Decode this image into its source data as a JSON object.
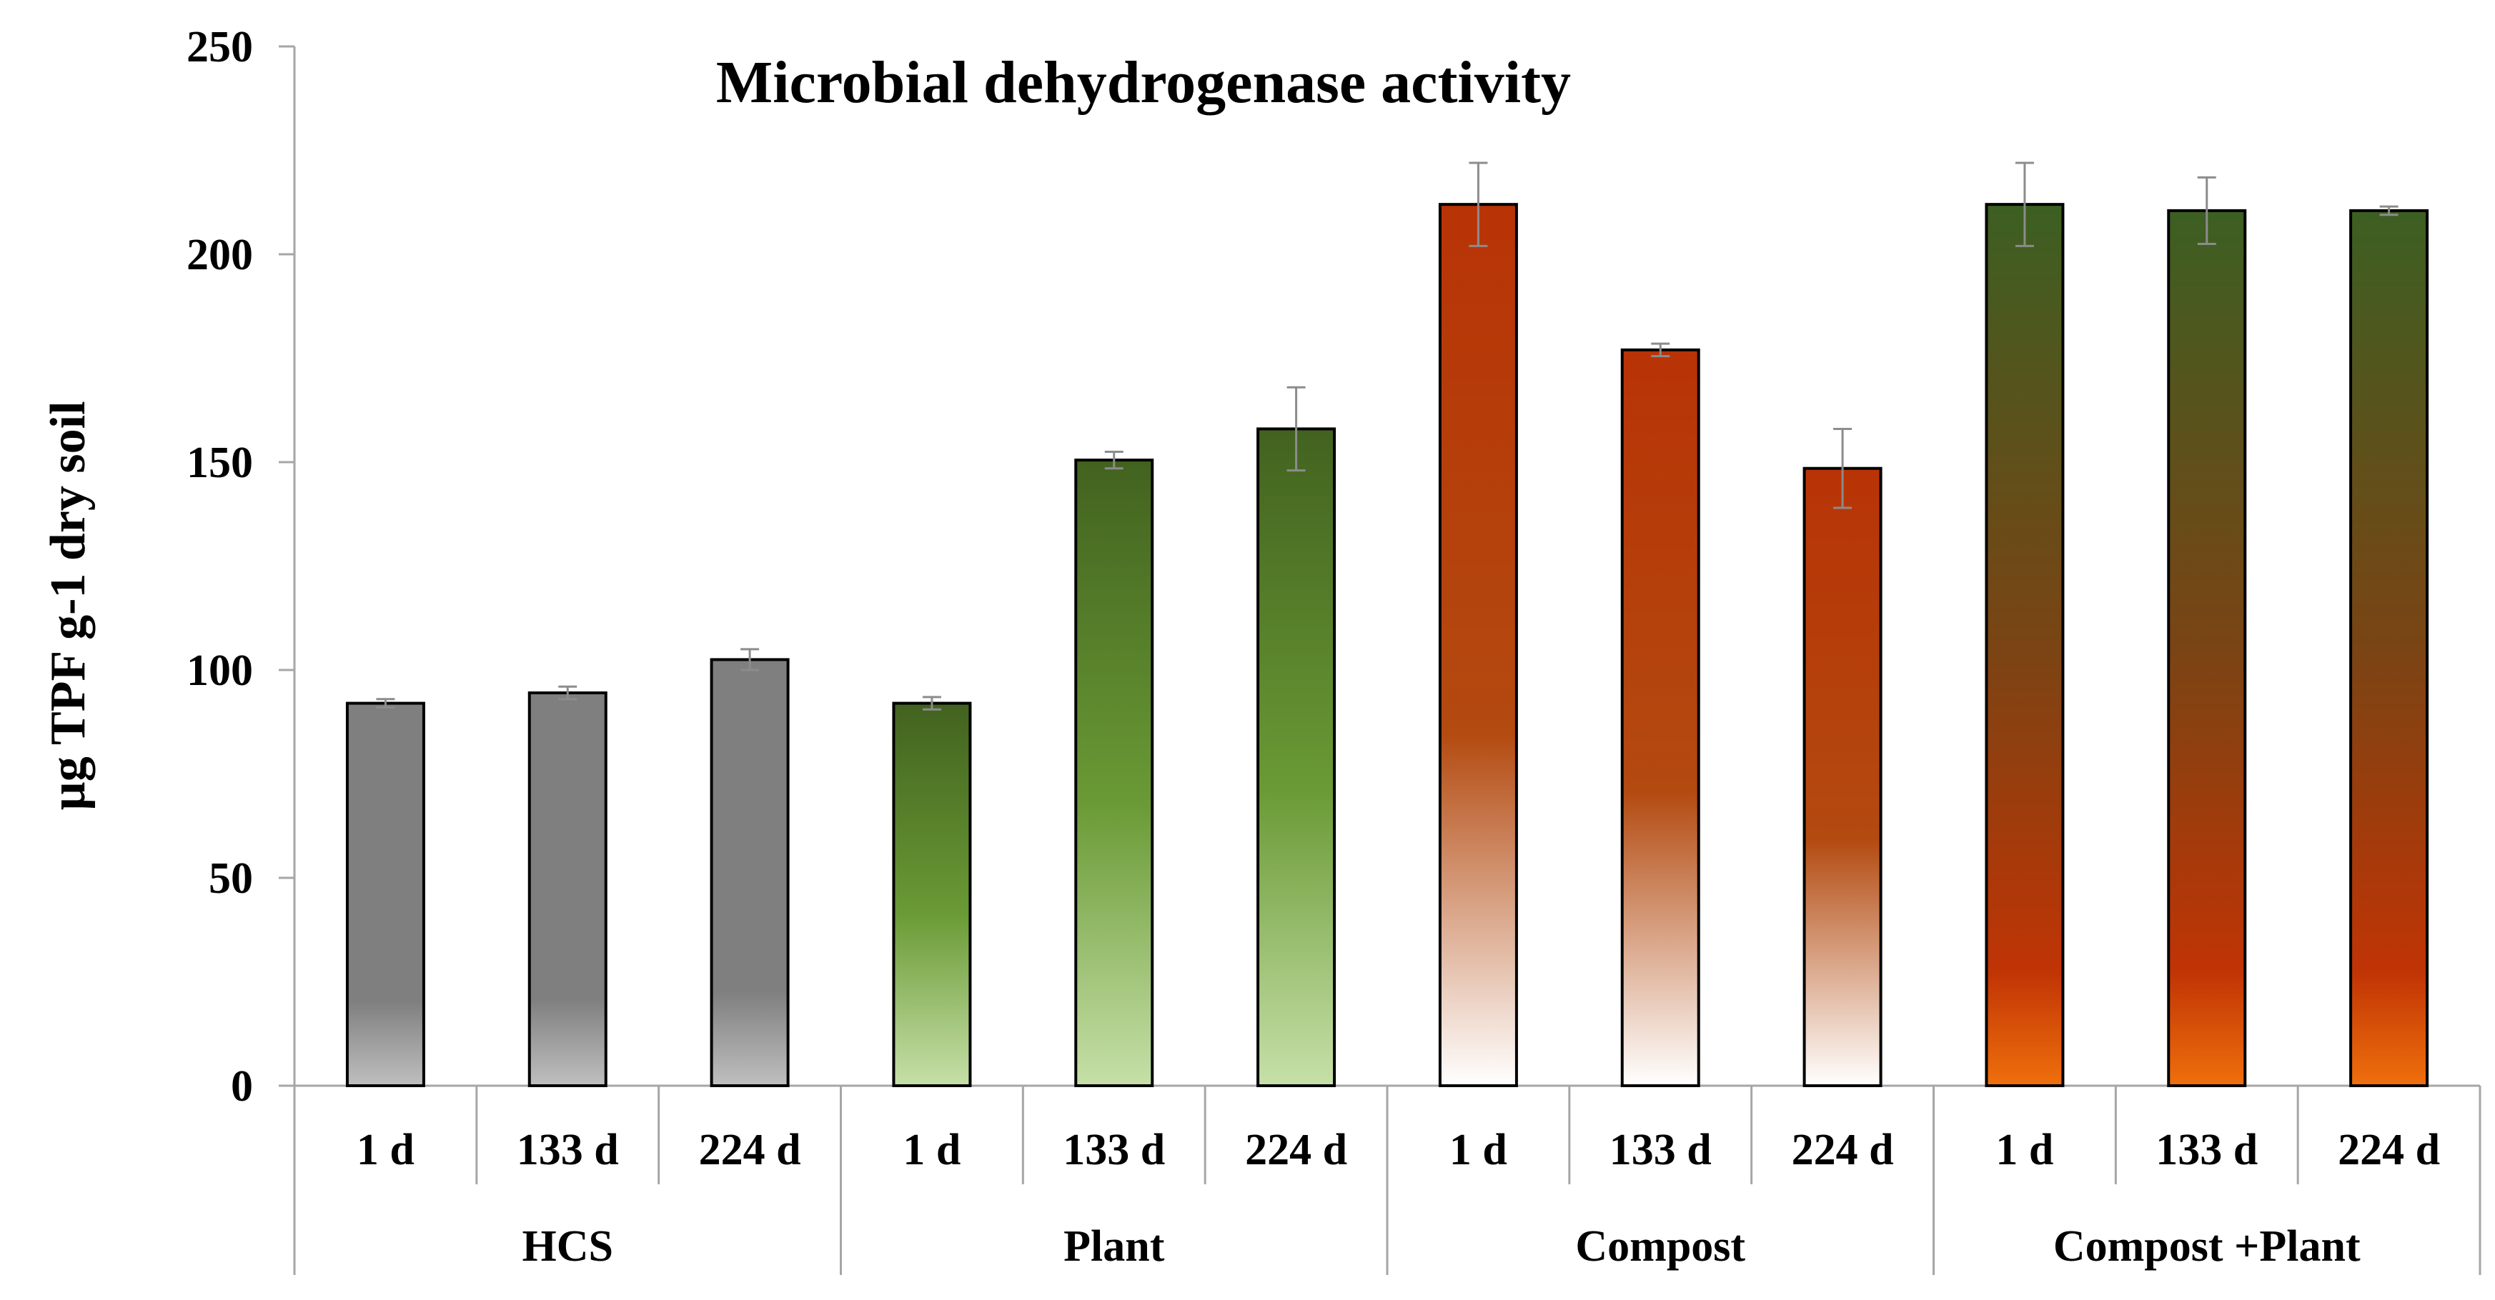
{
  "chart_data": {
    "type": "bar",
    "title": "Microbial dehydrogenase activity",
    "xlabel": "",
    "ylabel": "µg TPF g-1 dry soil",
    "ylim": [
      0,
      250
    ],
    "yticks": [
      0,
      50,
      100,
      150,
      200,
      250
    ],
    "grid": false,
    "legend": "none",
    "groups": [
      {
        "name": "HCS",
        "style": "gray",
        "bars": [
          {
            "label": "1 d",
            "value": 92,
            "error": 1
          },
          {
            "label": "133 d",
            "value": 94.5,
            "error": 1.5
          },
          {
            "label": "224 d",
            "value": 102.5,
            "error": 2.5
          }
        ]
      },
      {
        "name": "Plant",
        "style": "green",
        "bars": [
          {
            "label": "1 d",
            "value": 92,
            "error": 1.5
          },
          {
            "label": "133 d",
            "value": 150.5,
            "error": 2
          },
          {
            "label": "224 d",
            "value": 158,
            "error": 10
          }
        ]
      },
      {
        "name": "Compost",
        "style": "rust",
        "bars": [
          {
            "label": "1 d",
            "value": 212,
            "error": 10
          },
          {
            "label": "133 d",
            "value": 177,
            "error": 1.5
          },
          {
            "label": "224 d",
            "value": 148.5,
            "error": 9.5
          }
        ]
      },
      {
        "name": "Compost +Plant",
        "style": "greenorange",
        "bars": [
          {
            "label": "1 d",
            "value": 212,
            "error": 10
          },
          {
            "label": "133 d",
            "value": 210.5,
            "error": 8
          },
          {
            "label": "224 d",
            "value": 210.5,
            "error": 1
          }
        ]
      }
    ]
  },
  "colors": {
    "gray_top": "#7f7f7f",
    "gray_bottom": "#bfbfbf",
    "green_top": "#42621f",
    "green_mid": "#6a9a35",
    "green_bottom": "#c6e0a8",
    "rust_top": "#b83306",
    "rust_mid": "#b34a10",
    "rust_bottom": "#ffffff",
    "go_top": "#3c5f22",
    "go_mid": "#7a4414",
    "go_low": "#c03405",
    "go_bottom": "#ef6f0c",
    "error_bar": "#8c8c8c",
    "axis": "#a6a6a6",
    "bar_border": "#000000"
  }
}
